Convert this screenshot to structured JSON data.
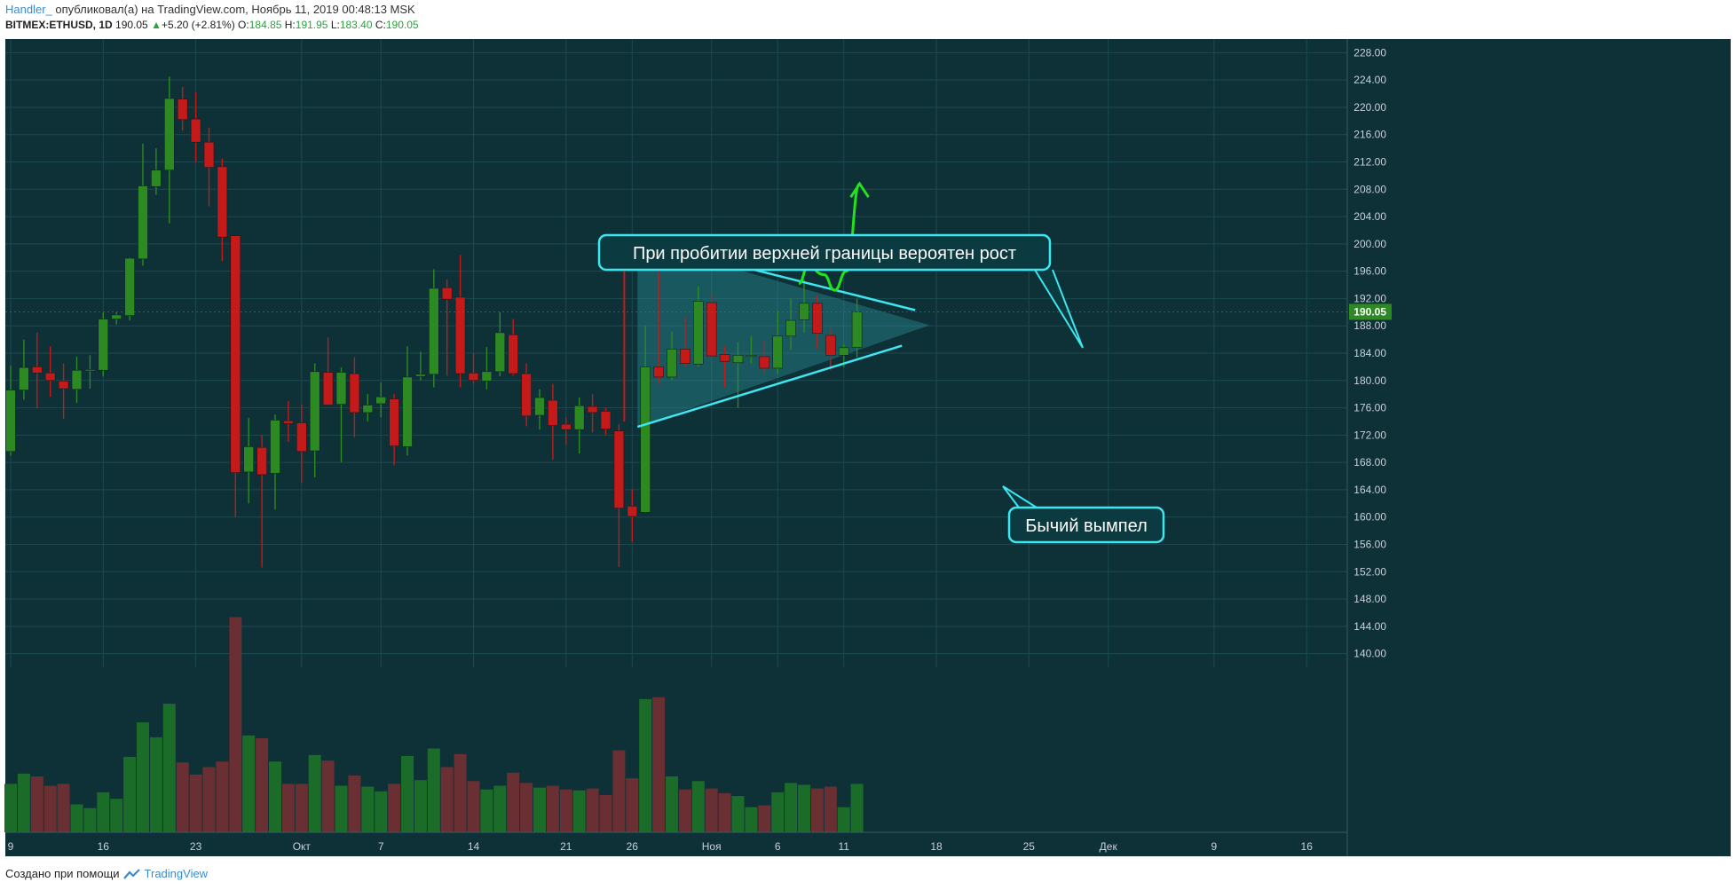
{
  "header": {
    "author": "Handler_",
    "published_text": " опубликовал(а) на TradingView.com, Ноябрь 11, 2019 00:48:13 MSK",
    "symbol": "BITMEX:ETHUSD, 1D",
    "last": "190.05",
    "change": "+5.20 (+2.81%)",
    "o_label": "O:",
    "o_value": "184.85",
    "h_label": "H:",
    "h_value": "191.95",
    "l_label": "L:",
    "l_value": "183.40",
    "c_label": "C:",
    "c_value": "190.05"
  },
  "footer": {
    "text": "Создано при помощи",
    "brand": "TradingView"
  },
  "colors": {
    "background": "#0e3037",
    "grid": "#1d4a52",
    "up": "#2d8a22",
    "down": "#c41a1a",
    "vol_up": "#1b6c28",
    "vol_down": "#6a2f33",
    "pennant_line": "#3ee6f0",
    "pennant_fill": "#2a8a92",
    "arrow": "#22e21c",
    "price_tag": "#2d8a22"
  },
  "chart_data": {
    "type": "candlestick",
    "ylim": [
      138,
      230
    ],
    "y_ticks": [
      "228.00",
      "224.00",
      "220.00",
      "216.00",
      "212.00",
      "208.00",
      "204.00",
      "200.00",
      "196.00",
      "192.00",
      "188.00",
      "184.00",
      "180.00",
      "176.00",
      "172.00",
      "168.00",
      "164.00",
      "160.00",
      "156.00",
      "152.00",
      "148.00",
      "144.00",
      "140.00"
    ],
    "last_price_label": "190.05",
    "x_ticks": [
      {
        "label": "9",
        "day": 0
      },
      {
        "label": "16",
        "day": 7
      },
      {
        "label": "23",
        "day": 14
      },
      {
        "label": "Окт",
        "day": 22
      },
      {
        "label": "7",
        "day": 28
      },
      {
        "label": "14",
        "day": 35
      },
      {
        "label": "21",
        "day": 42
      },
      {
        "label": "26",
        "day": 47
      },
      {
        "label": "Ноя",
        "day": 53
      },
      {
        "label": "6",
        "day": 58
      },
      {
        "label": "11",
        "day": 63
      },
      {
        "label": "18",
        "day": 70
      },
      {
        "label": "25",
        "day": 77
      },
      {
        "label": "Дек",
        "day": 83
      },
      {
        "label": "9",
        "day": 91
      },
      {
        "label": "16",
        "day": 98
      }
    ],
    "candles": [
      {
        "o": 169.6,
        "h": 182.2,
        "l": 169.0,
        "c": 178.6,
        "v": 5.2
      },
      {
        "o": 178.6,
        "h": 186.0,
        "l": 177.2,
        "c": 181.9,
        "v": 6.3
      },
      {
        "o": 182.0,
        "h": 187.0,
        "l": 175.9,
        "c": 181.1,
        "v": 6.0
      },
      {
        "o": 181.1,
        "h": 185.0,
        "l": 177.6,
        "c": 180.0,
        "v": 5.0
      },
      {
        "o": 179.9,
        "h": 182.5,
        "l": 174.4,
        "c": 178.8,
        "v": 5.2
      },
      {
        "o": 178.7,
        "h": 183.5,
        "l": 176.7,
        "c": 181.5,
        "v": 3.0
      },
      {
        "o": 181.4,
        "h": 183.7,
        "l": 178.8,
        "c": 181.6,
        "v": 2.6
      },
      {
        "o": 181.5,
        "h": 190.0,
        "l": 180.6,
        "c": 189.0,
        "v": 4.3
      },
      {
        "o": 189.0,
        "h": 190.0,
        "l": 188.2,
        "c": 189.6,
        "v": 3.6
      },
      {
        "o": 189.5,
        "h": 198.0,
        "l": 188.8,
        "c": 197.9,
        "v": 8.1
      },
      {
        "o": 197.8,
        "h": 214.7,
        "l": 196.8,
        "c": 208.5,
        "v": 11.8
      },
      {
        "o": 208.4,
        "h": 214.0,
        "l": 207.2,
        "c": 210.8,
        "v": 10.2
      },
      {
        "o": 210.8,
        "h": 224.5,
        "l": 203.0,
        "c": 221.3,
        "v": 13.8
      },
      {
        "o": 221.2,
        "h": 223.0,
        "l": 216.6,
        "c": 218.2,
        "v": 7.5
      },
      {
        "o": 218.3,
        "h": 222.2,
        "l": 212.0,
        "c": 214.9,
        "v": 6.2
      },
      {
        "o": 214.9,
        "h": 217.0,
        "l": 205.5,
        "c": 211.2,
        "v": 7.0
      },
      {
        "o": 211.3,
        "h": 212.5,
        "l": 197.5,
        "c": 201.0,
        "v": 7.6
      },
      {
        "o": 201.2,
        "h": 201.2,
        "l": 160.0,
        "c": 166.5,
        "v": 23.1
      },
      {
        "o": 166.6,
        "h": 174.5,
        "l": 162.0,
        "c": 170.3,
        "v": 10.4
      },
      {
        "o": 170.2,
        "h": 172.0,
        "l": 152.6,
        "c": 166.2,
        "v": 10.1
      },
      {
        "o": 166.4,
        "h": 175.0,
        "l": 161.1,
        "c": 174.2,
        "v": 7.6
      },
      {
        "o": 174.1,
        "h": 177.0,
        "l": 171.0,
        "c": 173.7,
        "v": 5.2
      },
      {
        "o": 173.8,
        "h": 176.5,
        "l": 165.0,
        "c": 169.6,
        "v": 5.2
      },
      {
        "o": 169.7,
        "h": 182.5,
        "l": 165.8,
        "c": 181.3,
        "v": 8.3
      },
      {
        "o": 181.2,
        "h": 186.3,
        "l": 176.5,
        "c": 176.4,
        "v": 7.7
      },
      {
        "o": 176.5,
        "h": 181.9,
        "l": 168.0,
        "c": 181.2,
        "v": 5.0
      },
      {
        "o": 181.0,
        "h": 183.4,
        "l": 171.7,
        "c": 175.3,
        "v": 6.1
      },
      {
        "o": 175.3,
        "h": 178.0,
        "l": 174.0,
        "c": 176.4,
        "v": 4.9
      },
      {
        "o": 176.6,
        "h": 179.7,
        "l": 174.6,
        "c": 177.6,
        "v": 4.4
      },
      {
        "o": 177.3,
        "h": 178.0,
        "l": 167.6,
        "c": 170.4,
        "v": 5.2
      },
      {
        "o": 170.3,
        "h": 185.0,
        "l": 169.0,
        "c": 180.5,
        "v": 8.2
      },
      {
        "o": 180.6,
        "h": 184.2,
        "l": 180.0,
        "c": 180.9,
        "v": 5.6
      },
      {
        "o": 180.9,
        "h": 196.3,
        "l": 179.0,
        "c": 193.5,
        "v": 9.0
      },
      {
        "o": 193.6,
        "h": 194.8,
        "l": 180.7,
        "c": 191.9,
        "v": 7.0
      },
      {
        "o": 192.2,
        "h": 198.4,
        "l": 179.0,
        "c": 181.0,
        "v": 8.4
      },
      {
        "o": 181.1,
        "h": 184.0,
        "l": 179.5,
        "c": 180.0,
        "v": 5.5
      },
      {
        "o": 179.9,
        "h": 184.9,
        "l": 178.7,
        "c": 181.3,
        "v": 4.6
      },
      {
        "o": 181.3,
        "h": 190.0,
        "l": 180.6,
        "c": 187.0,
        "v": 5.0
      },
      {
        "o": 186.7,
        "h": 189.0,
        "l": 180.7,
        "c": 181.0,
        "v": 6.4
      },
      {
        "o": 181.0,
        "h": 182.5,
        "l": 173.3,
        "c": 174.8,
        "v": 5.3
      },
      {
        "o": 174.9,
        "h": 178.7,
        "l": 172.8,
        "c": 177.5,
        "v": 4.8
      },
      {
        "o": 177.1,
        "h": 179.5,
        "l": 168.4,
        "c": 173.4,
        "v": 5.0
      },
      {
        "o": 173.6,
        "h": 174.6,
        "l": 170.6,
        "c": 172.8,
        "v": 4.6
      },
      {
        "o": 172.8,
        "h": 177.5,
        "l": 169.3,
        "c": 176.3,
        "v": 4.5
      },
      {
        "o": 176.2,
        "h": 178.0,
        "l": 172.4,
        "c": 175.3,
        "v": 4.7
      },
      {
        "o": 175.5,
        "h": 176.0,
        "l": 172.0,
        "c": 172.9,
        "v": 4.0
      },
      {
        "o": 172.6,
        "h": 173.6,
        "l": 152.7,
        "c": 161.3,
        "v": 8.8
      },
      {
        "o": 161.6,
        "h": 164.0,
        "l": 156.4,
        "c": 160.1,
        "v": 5.8
      },
      {
        "o": 160.7,
        "h": 188.0,
        "l": 160.6,
        "c": 182.0,
        "v": 14.3
      },
      {
        "o": 182.0,
        "h": 200.0,
        "l": 179.5,
        "c": 180.5,
        "v": 14.5
      },
      {
        "o": 180.5,
        "h": 187.2,
        "l": 180.0,
        "c": 184.6,
        "v": 6.0
      },
      {
        "o": 184.6,
        "h": 189.2,
        "l": 182.0,
        "c": 182.5,
        "v": 4.6
      },
      {
        "o": 182.4,
        "h": 193.8,
        "l": 182.0,
        "c": 191.6,
        "v": 5.5
      },
      {
        "o": 191.4,
        "h": 192.6,
        "l": 183.4,
        "c": 183.6,
        "v": 4.7
      },
      {
        "o": 183.8,
        "h": 185.0,
        "l": 179.0,
        "c": 182.8,
        "v": 4.2
      },
      {
        "o": 182.6,
        "h": 185.6,
        "l": 176.0,
        "c": 183.7,
        "v": 3.9
      },
      {
        "o": 183.5,
        "h": 186.5,
        "l": 182.5,
        "c": 183.7,
        "v": 2.7
      },
      {
        "o": 183.5,
        "h": 186.0,
        "l": 181.0,
        "c": 181.8,
        "v": 2.9
      },
      {
        "o": 181.8,
        "h": 190.2,
        "l": 181.0,
        "c": 186.5,
        "v": 4.3
      },
      {
        "o": 186.5,
        "h": 192.0,
        "l": 184.5,
        "c": 188.8,
        "v": 5.3
      },
      {
        "o": 188.9,
        "h": 194.8,
        "l": 187.0,
        "c": 191.3,
        "v": 5.1
      },
      {
        "o": 191.3,
        "h": 192.5,
        "l": 184.6,
        "c": 186.9,
        "v": 4.7
      },
      {
        "o": 186.6,
        "h": 187.6,
        "l": 181.5,
        "c": 183.7,
        "v": 4.9
      },
      {
        "o": 183.7,
        "h": 185.3,
        "l": 181.9,
        "c": 184.8,
        "v": 2.7
      },
      {
        "o": 184.85,
        "h": 191.95,
        "l": 183.4,
        "c": 190.05,
        "v": 5.2
      }
    ],
    "annotations": [
      {
        "text": "При пробитии верхней границы вероятен рост"
      },
      {
        "text": "Бычий вымпел"
      }
    ],
    "pennant": {
      "upper_line": [
        [
          47.4,
          200.5
        ],
        [
          68.4,
          190.3
        ]
      ],
      "lower_line": [
        [
          47.4,
          173.2
        ],
        [
          67.4,
          185.1
        ]
      ],
      "flagpole": [
        [
          46.4,
          200.2
        ],
        [
          46.4,
          174.0
        ]
      ],
      "tip": [
        69.5,
        188.1
      ],
      "arrow_path": [
        [
          59.6,
          194.2
        ],
        [
          60.3,
          196.7
        ],
        [
          61.5,
          195.5
        ],
        [
          62.3,
          193.2
        ],
        [
          63.2,
          196.0
        ],
        [
          64.2,
          208.8
        ]
      ]
    }
  }
}
